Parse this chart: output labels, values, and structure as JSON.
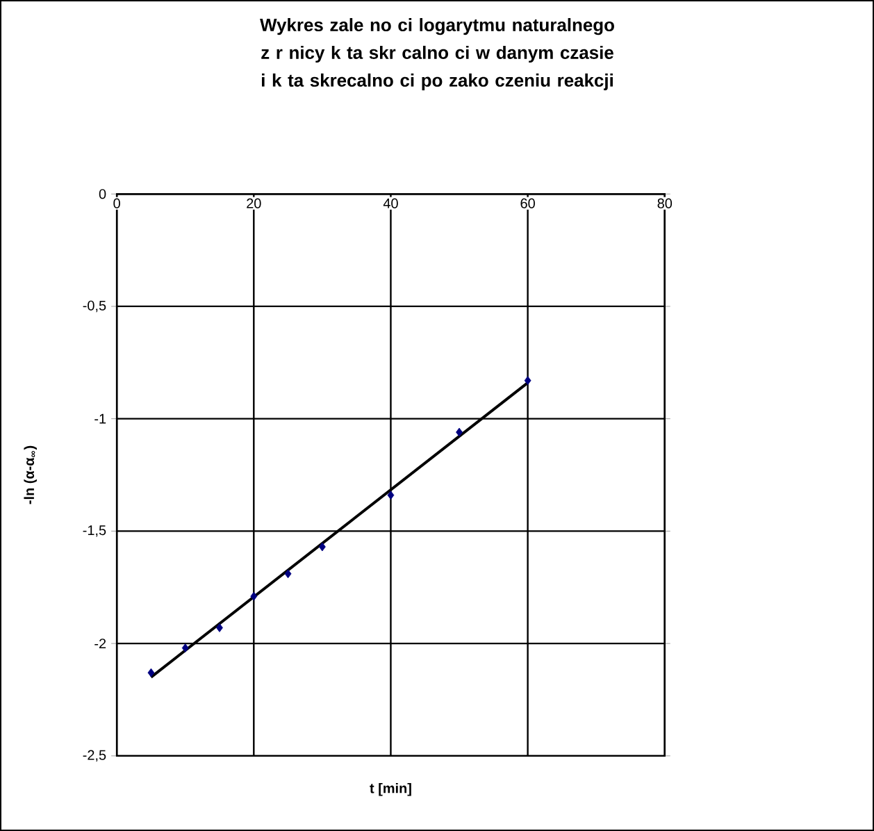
{
  "chart_data": {
    "type": "scatter",
    "title": "Wykres zale no ci logarytmu naturalnego z r nicy k ta skr calno ci w danym czasie i k ta skrecalno ci po zako czeniu reakcji",
    "xlabel": "t [min]",
    "ylabel": "-ln (α-α$_{∞}$)",
    "xlim": [
      0,
      80
    ],
    "xticks": [
      0,
      20,
      40,
      60,
      80
    ],
    "ylim": [
      -2.5,
      0
    ],
    "yticks": [
      {
        "value": -2.5,
        "label": "-2,5"
      },
      {
        "value": -2,
        "label": "-2"
      },
      {
        "value": -1.5,
        "label": "-1,5"
      },
      {
        "value": -1,
        "label": "-1"
      },
      {
        "value": -0.5,
        "label": "-0,5"
      },
      {
        "value": 0,
        "label": "0"
      }
    ],
    "grid": true,
    "marker": "diamond",
    "series": [
      {
        "color": "#000080",
        "x": [
          5,
          10,
          15,
          20,
          25,
          30,
          40,
          50,
          60
        ],
        "values": [
          -2.13,
          -2.02,
          -1.93,
          -1.79,
          -1.69,
          -1.57,
          -1.34,
          -1.06,
          -0.83
        ]
      },
      {
        "type": "line",
        "marker": "none",
        "color": "#000000",
        "x": [
          5,
          60
        ],
        "values": [
          -2.15,
          -0.84
        ]
      }
    ]
  }
}
